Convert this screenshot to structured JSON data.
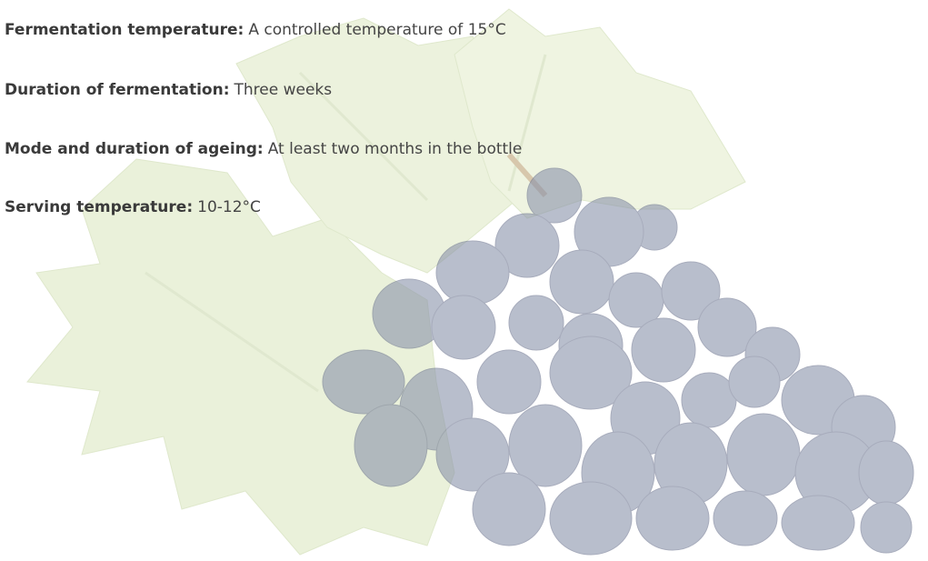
{
  "items": [
    {
      "label": "Fermentation temperature:",
      "value": "A controlled temperature of 15°C"
    },
    {
      "label": "Duration of fermentation:",
      "value": "Three weeks"
    },
    {
      "label": "Mode and duration of ageing:",
      "value": "At least two months in the bottle"
    },
    {
      "label": "Serving temperature:",
      "value": "10-12°C"
    }
  ]
}
